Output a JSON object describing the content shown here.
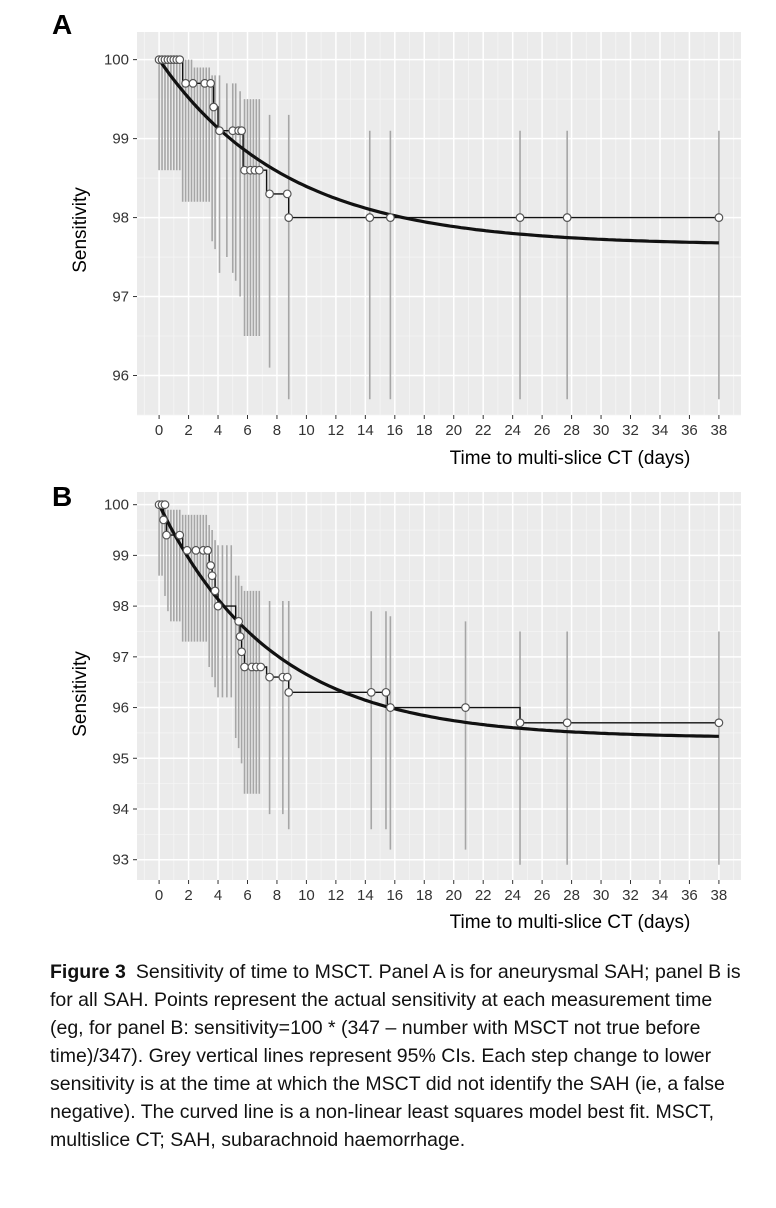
{
  "chart_data": [
    {
      "panel_label": "A",
      "type": "line",
      "xlabel": "Time to multi-slice CT (days)",
      "ylabel": "Sensitivity",
      "xlim": [
        -1.5,
        39.5
      ],
      "ylim": [
        95.5,
        100.35
      ],
      "x_ticks": [
        0,
        2,
        4,
        6,
        8,
        10,
        12,
        14,
        16,
        18,
        20,
        22,
        24,
        26,
        28,
        30,
        32,
        34,
        36,
        38
      ],
      "y_ticks": [
        96,
        97,
        98,
        99,
        100
      ],
      "grid": true,
      "points": [
        {
          "x": 0.0,
          "y": 100
        },
        {
          "x": 0.2,
          "y": 100
        },
        {
          "x": 0.4,
          "y": 100
        },
        {
          "x": 0.6,
          "y": 100
        },
        {
          "x": 0.8,
          "y": 100
        },
        {
          "x": 1.0,
          "y": 100
        },
        {
          "x": 1.2,
          "y": 100
        },
        {
          "x": 1.4,
          "y": 100
        },
        {
          "x": 1.8,
          "y": 99.7
        },
        {
          "x": 2.3,
          "y": 99.7
        },
        {
          "x": 3.1,
          "y": 99.7
        },
        {
          "x": 3.5,
          "y": 99.7
        },
        {
          "x": 3.7,
          "y": 99.4
        },
        {
          "x": 4.1,
          "y": 99.1
        },
        {
          "x": 5.0,
          "y": 99.1
        },
        {
          "x": 5.4,
          "y": 99.1
        },
        {
          "x": 5.6,
          "y": 99.1
        },
        {
          "x": 5.8,
          "y": 98.6
        },
        {
          "x": 6.2,
          "y": 98.6
        },
        {
          "x": 6.5,
          "y": 98.6
        },
        {
          "x": 6.8,
          "y": 98.6
        },
        {
          "x": 7.5,
          "y": 98.3
        },
        {
          "x": 8.7,
          "y": 98.3
        },
        {
          "x": 8.8,
          "y": 98.0
        },
        {
          "x": 14.3,
          "y": 98.0
        },
        {
          "x": 15.7,
          "y": 98.0
        },
        {
          "x": 24.5,
          "y": 98.0
        },
        {
          "x": 27.7,
          "y": 98.0
        },
        {
          "x": 38.0,
          "y": 98.0
        }
      ],
      "step": [
        [
          0,
          100
        ],
        [
          1.6,
          100
        ],
        [
          1.6,
          99.7
        ],
        [
          3.7,
          99.7
        ],
        [
          3.7,
          99.4
        ],
        [
          4.0,
          99.4
        ],
        [
          4.0,
          99.1
        ],
        [
          5.7,
          99.1
        ],
        [
          5.7,
          98.6
        ],
        [
          7.3,
          98.6
        ],
        [
          7.3,
          98.3
        ],
        [
          8.8,
          98.3
        ],
        [
          8.8,
          98.0
        ],
        [
          38,
          98.0
        ]
      ],
      "ci_lines": [
        {
          "x": 0.0,
          "lo": 98.6,
          "hi": 100
        },
        {
          "x": 0.2,
          "lo": 98.6,
          "hi": 100
        },
        {
          "x": 0.4,
          "lo": 98.6,
          "hi": 100
        },
        {
          "x": 0.6,
          "lo": 98.6,
          "hi": 100
        },
        {
          "x": 0.8,
          "lo": 98.6,
          "hi": 100
        },
        {
          "x": 1.0,
          "lo": 98.6,
          "hi": 100
        },
        {
          "x": 1.2,
          "lo": 98.6,
          "hi": 100
        },
        {
          "x": 1.4,
          "lo": 98.6,
          "hi": 100
        },
        {
          "x": 1.6,
          "lo": 98.2,
          "hi": 100
        },
        {
          "x": 1.8,
          "lo": 98.2,
          "hi": 100
        },
        {
          "x": 2.0,
          "lo": 98.2,
          "hi": 100
        },
        {
          "x": 2.2,
          "lo": 98.2,
          "hi": 100
        },
        {
          "x": 2.4,
          "lo": 98.2,
          "hi": 99.9
        },
        {
          "x": 2.6,
          "lo": 98.2,
          "hi": 99.9
        },
        {
          "x": 2.8,
          "lo": 98.2,
          "hi": 99.9
        },
        {
          "x": 3.0,
          "lo": 98.2,
          "hi": 99.9
        },
        {
          "x": 3.2,
          "lo": 98.2,
          "hi": 99.9
        },
        {
          "x": 3.4,
          "lo": 98.2,
          "hi": 99.9
        },
        {
          "x": 3.6,
          "lo": 97.7,
          "hi": 99.8
        },
        {
          "x": 3.8,
          "lo": 97.6,
          "hi": 99.8
        },
        {
          "x": 4.1,
          "lo": 97.3,
          "hi": 99.8
        },
        {
          "x": 4.6,
          "lo": 97.5,
          "hi": 99.7
        },
        {
          "x": 5.0,
          "lo": 97.3,
          "hi": 99.7
        },
        {
          "x": 5.2,
          "lo": 97.2,
          "hi": 99.7
        },
        {
          "x": 5.5,
          "lo": 97.0,
          "hi": 99.6
        },
        {
          "x": 5.8,
          "lo": 96.5,
          "hi": 99.5
        },
        {
          "x": 6.0,
          "lo": 96.5,
          "hi": 99.5
        },
        {
          "x": 6.2,
          "lo": 96.5,
          "hi": 99.5
        },
        {
          "x": 6.4,
          "lo": 96.5,
          "hi": 99.5
        },
        {
          "x": 6.6,
          "lo": 96.5,
          "hi": 99.5
        },
        {
          "x": 6.8,
          "lo": 96.5,
          "hi": 99.5
        },
        {
          "x": 7.5,
          "lo": 96.1,
          "hi": 99.3
        },
        {
          "x": 8.8,
          "lo": 95.7,
          "hi": 99.3
        },
        {
          "x": 14.3,
          "lo": 95.7,
          "hi": 99.1
        },
        {
          "x": 15.7,
          "lo": 95.7,
          "hi": 99.1
        },
        {
          "x": 24.5,
          "lo": 95.7,
          "hi": 99.1
        },
        {
          "x": 27.7,
          "lo": 95.7,
          "hi": 99.1
        },
        {
          "x": 38.0,
          "lo": 95.7,
          "hi": 99.1
        }
      ],
      "fit_curve": {
        "asymptote": 97.65,
        "start": 100,
        "rate": 0.115
      }
    },
    {
      "panel_label": "B",
      "type": "line",
      "xlabel": "Time to multi-slice CT (days)",
      "ylabel": "Sensitivity",
      "xlim": [
        -1.5,
        39.5
      ],
      "ylim": [
        92.6,
        100.25
      ],
      "x_ticks": [
        0,
        2,
        4,
        6,
        8,
        10,
        12,
        14,
        16,
        18,
        20,
        22,
        24,
        26,
        28,
        30,
        32,
        34,
        36,
        38
      ],
      "y_ticks": [
        93,
        94,
        95,
        96,
        97,
        98,
        99,
        100
      ],
      "grid": true,
      "points": [
        {
          "x": 0.0,
          "y": 100
        },
        {
          "x": 0.2,
          "y": 100
        },
        {
          "x": 0.4,
          "y": 100
        },
        {
          "x": 0.3,
          "y": 99.7
        },
        {
          "x": 0.5,
          "y": 99.4
        },
        {
          "x": 1.4,
          "y": 99.4
        },
        {
          "x": 1.9,
          "y": 99.1
        },
        {
          "x": 2.5,
          "y": 99.1
        },
        {
          "x": 3.0,
          "y": 99.1
        },
        {
          "x": 3.3,
          "y": 99.1
        },
        {
          "x": 3.5,
          "y": 98.8
        },
        {
          "x": 3.6,
          "y": 98.6
        },
        {
          "x": 3.8,
          "y": 98.3
        },
        {
          "x": 4.0,
          "y": 98.0
        },
        {
          "x": 5.4,
          "y": 97.7
        },
        {
          "x": 5.5,
          "y": 97.4
        },
        {
          "x": 5.6,
          "y": 97.1
        },
        {
          "x": 5.8,
          "y": 96.8
        },
        {
          "x": 6.3,
          "y": 96.8
        },
        {
          "x": 6.6,
          "y": 96.8
        },
        {
          "x": 6.9,
          "y": 96.8
        },
        {
          "x": 7.5,
          "y": 96.6
        },
        {
          "x": 8.4,
          "y": 96.6
        },
        {
          "x": 8.7,
          "y": 96.6
        },
        {
          "x": 8.8,
          "y": 96.3
        },
        {
          "x": 14.4,
          "y": 96.3
        },
        {
          "x": 15.4,
          "y": 96.3
        },
        {
          "x": 15.7,
          "y": 96.0
        },
        {
          "x": 20.8,
          "y": 96.0
        },
        {
          "x": 24.5,
          "y": 95.7
        },
        {
          "x": 27.7,
          "y": 95.7
        },
        {
          "x": 38.0,
          "y": 95.7
        }
      ],
      "step": [
        [
          0,
          100
        ],
        [
          0.3,
          100
        ],
        [
          0.3,
          99.7
        ],
        [
          0.5,
          99.7
        ],
        [
          0.5,
          99.4
        ],
        [
          1.6,
          99.4
        ],
        [
          1.6,
          99.1
        ],
        [
          3.4,
          99.1
        ],
        [
          3.4,
          98.8
        ],
        [
          3.6,
          98.8
        ],
        [
          3.6,
          98.6
        ],
        [
          3.8,
          98.6
        ],
        [
          3.8,
          98.3
        ],
        [
          4.0,
          98.3
        ],
        [
          4.0,
          98.0
        ],
        [
          5.2,
          98.0
        ],
        [
          5.2,
          97.7
        ],
        [
          5.5,
          97.7
        ],
        [
          5.5,
          97.4
        ],
        [
          5.6,
          97.4
        ],
        [
          5.6,
          97.1
        ],
        [
          5.8,
          97.1
        ],
        [
          5.8,
          96.8
        ],
        [
          7.3,
          96.8
        ],
        [
          7.3,
          96.6
        ],
        [
          8.8,
          96.6
        ],
        [
          8.8,
          96.3
        ],
        [
          15.5,
          96.3
        ],
        [
          15.5,
          96.0
        ],
        [
          24.5,
          96.0
        ],
        [
          24.5,
          95.7
        ],
        [
          38,
          95.7
        ]
      ],
      "ci_lines": [
        {
          "x": 0.0,
          "lo": 98.6,
          "hi": 100
        },
        {
          "x": 0.2,
          "lo": 98.6,
          "hi": 100
        },
        {
          "x": 0.4,
          "lo": 98.2,
          "hi": 100
        },
        {
          "x": 0.6,
          "lo": 97.9,
          "hi": 99.9
        },
        {
          "x": 0.8,
          "lo": 97.7,
          "hi": 99.9
        },
        {
          "x": 1.0,
          "lo": 97.7,
          "hi": 99.9
        },
        {
          "x": 1.2,
          "lo": 97.7,
          "hi": 99.9
        },
        {
          "x": 1.4,
          "lo": 97.7,
          "hi": 99.9
        },
        {
          "x": 1.6,
          "lo": 97.3,
          "hi": 99.8
        },
        {
          "x": 1.8,
          "lo": 97.3,
          "hi": 99.8
        },
        {
          "x": 2.0,
          "lo": 97.3,
          "hi": 99.8
        },
        {
          "x": 2.2,
          "lo": 97.3,
          "hi": 99.8
        },
        {
          "x": 2.4,
          "lo": 97.3,
          "hi": 99.8
        },
        {
          "x": 2.6,
          "lo": 97.3,
          "hi": 99.8
        },
        {
          "x": 2.8,
          "lo": 97.3,
          "hi": 99.8
        },
        {
          "x": 3.0,
          "lo": 97.3,
          "hi": 99.8
        },
        {
          "x": 3.2,
          "lo": 97.3,
          "hi": 99.8
        },
        {
          "x": 3.4,
          "lo": 96.8,
          "hi": 99.6
        },
        {
          "x": 3.6,
          "lo": 96.6,
          "hi": 99.5
        },
        {
          "x": 3.8,
          "lo": 96.4,
          "hi": 99.3
        },
        {
          "x": 4.0,
          "lo": 96.2,
          "hi": 99.2
        },
        {
          "x": 4.3,
          "lo": 96.2,
          "hi": 99.2
        },
        {
          "x": 4.6,
          "lo": 96.2,
          "hi": 99.2
        },
        {
          "x": 4.9,
          "lo": 96.2,
          "hi": 99.2
        },
        {
          "x": 5.2,
          "lo": 95.4,
          "hi": 98.6
        },
        {
          "x": 5.4,
          "lo": 95.2,
          "hi": 98.6
        },
        {
          "x": 5.6,
          "lo": 94.9,
          "hi": 98.4
        },
        {
          "x": 5.8,
          "lo": 94.3,
          "hi": 98.3
        },
        {
          "x": 6.0,
          "lo": 94.3,
          "hi": 98.3
        },
        {
          "x": 6.2,
          "lo": 94.3,
          "hi": 98.3
        },
        {
          "x": 6.4,
          "lo": 94.3,
          "hi": 98.3
        },
        {
          "x": 6.6,
          "lo": 94.3,
          "hi": 98.3
        },
        {
          "x": 6.8,
          "lo": 94.3,
          "hi": 98.3
        },
        {
          "x": 7.5,
          "lo": 93.9,
          "hi": 98.1
        },
        {
          "x": 8.4,
          "lo": 93.9,
          "hi": 98.1
        },
        {
          "x": 8.8,
          "lo": 93.6,
          "hi": 98.1
        },
        {
          "x": 14.4,
          "lo": 93.6,
          "hi": 97.9
        },
        {
          "x": 15.4,
          "lo": 93.6,
          "hi": 97.9
        },
        {
          "x": 15.7,
          "lo": 93.2,
          "hi": 97.8
        },
        {
          "x": 20.8,
          "lo": 93.2,
          "hi": 97.7
        },
        {
          "x": 24.5,
          "lo": 92.9,
          "hi": 97.5
        },
        {
          "x": 27.7,
          "lo": 92.9,
          "hi": 97.5
        },
        {
          "x": 38.0,
          "lo": 92.9,
          "hi": 97.5
        }
      ],
      "fit_curve": {
        "asymptote": 95.4,
        "start": 100,
        "rate": 0.13
      }
    }
  ],
  "caption": {
    "label": "Figure 3",
    "text": "Sensitivity of time to MSCT. Panel A is for aneurysmal SAH; panel B is for all SAH. Points represent the actual sensitivity at each measurement time (eg, for panel B: sensitivity=100 * (347 – number with MSCT not true before time)/347). Grey vertical lines represent 95% CIs. Each step change to lower sensitivity is at the time at which the MSCT did not identify the SAH (ie, a false negative). The curved line is a non-linear least squares model best fit. MSCT, multislice CT; SAH, subarachnoid haemorrhage."
  }
}
